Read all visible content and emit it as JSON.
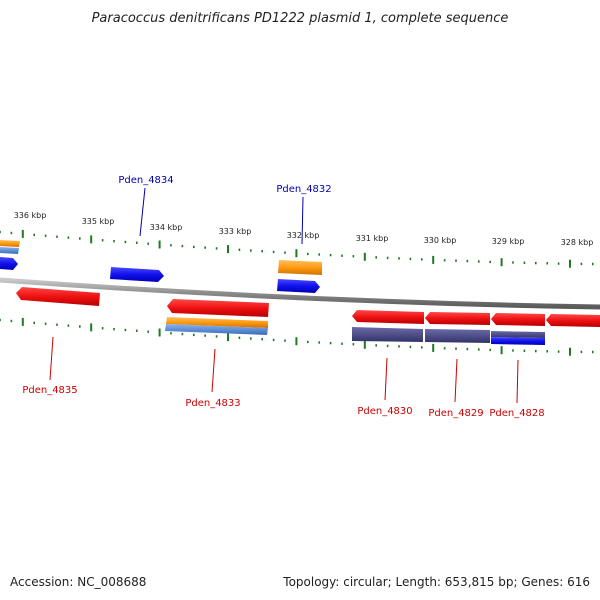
{
  "title": "Paracoccus denitrificans PD1222 plasmid 1, complete sequence",
  "footer": {
    "accession": "Accession: NC_008688",
    "stats": "Topology: circular; Length: 653,815 bp; Genes: 616"
  },
  "colors": {
    "backbone": "#8a8a8a",
    "tick": "#1f7a1f",
    "forward_label": "#0000aa",
    "reverse_label": "#cc0000",
    "red": "#ee1111",
    "blue": "#1111ee",
    "orange": "#ff9a10",
    "steel": "#5a8ad0",
    "purple": "#4a4a8a"
  },
  "tick_labels": [
    "336 kbp",
    "335 kbp",
    "334 kbp",
    "333 kbp",
    "332 kbp",
    "331 kbp",
    "330 kbp",
    "329 kbp",
    "328 kbp"
  ],
  "gene_labels": [
    "Pden_4834",
    "Pden_4832",
    "Pden_4835",
    "Pden_4833",
    "Pden_4830",
    "Pden_4829",
    "Pden_4828"
  ]
}
